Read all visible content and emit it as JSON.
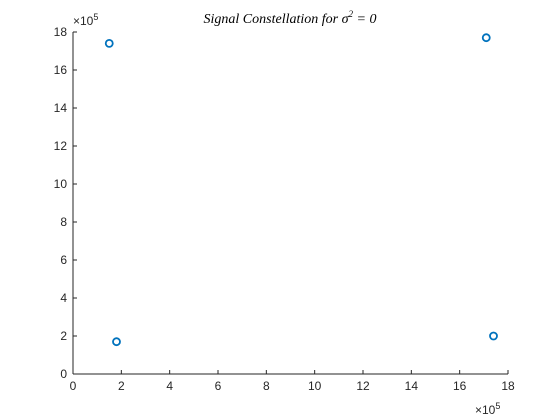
{
  "chart_data": {
    "type": "scatter",
    "title": "Signal Constellation for σ² = 0",
    "title_parts": {
      "main": "Signal Constellation for σ",
      "superscript": "2",
      "tail": " = 0"
    },
    "xlabel": "",
    "ylabel": "",
    "x_exponent_label": {
      "base": "×10",
      "power": "5"
    },
    "y_exponent_label": {
      "base": "×10",
      "power": "5"
    },
    "xlim": [
      0,
      18
    ],
    "ylim": [
      0,
      18
    ],
    "xticks": [
      "0",
      "2",
      "4",
      "6",
      "8",
      "10",
      "12",
      "14",
      "16",
      "18"
    ],
    "yticks": [
      "0",
      "2",
      "4",
      "6",
      "8",
      "10",
      "12",
      "14",
      "16",
      "18"
    ],
    "grid": false,
    "marker": "circle",
    "color": "#0072BD",
    "points": [
      {
        "x": 1.5,
        "y": 17.4
      },
      {
        "x": 17.1,
        "y": 17.7
      },
      {
        "x": 1.8,
        "y": 1.7
      },
      {
        "x": 17.4,
        "y": 2.0
      }
    ]
  }
}
